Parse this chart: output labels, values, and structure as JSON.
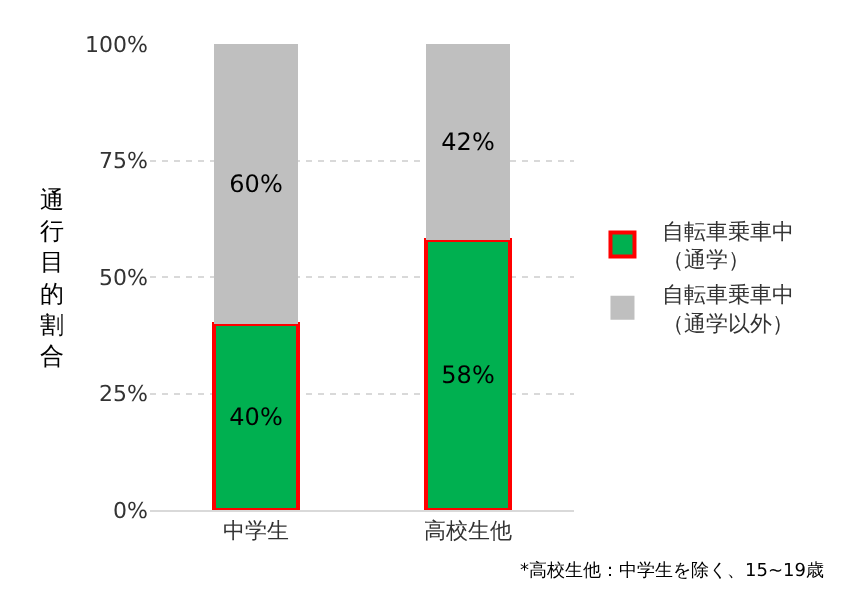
{
  "chart_data": {
    "type": "bar",
    "stacked": true,
    "ylabel": "通行目的割合",
    "categories": [
      "中学生",
      "高校生他"
    ],
    "series": [
      {
        "name": "自転車乗車中（通学）",
        "color": "#00b050",
        "values": [
          40,
          58
        ],
        "value_labels": [
          "40%",
          "58%"
        ]
      },
      {
        "name": "自転車乗車中（通学以外）",
        "color": "#bfbfbf",
        "values": [
          60,
          42
        ],
        "value_labels": [
          "60%",
          "42%"
        ]
      }
    ],
    "ylim": [
      0,
      100
    ],
    "yticks": [
      {
        "value": 0,
        "label": "0%"
      },
      {
        "value": 25,
        "label": "25%"
      },
      {
        "value": 50,
        "label": "50%"
      },
      {
        "value": 75,
        "label": "75%"
      },
      {
        "value": 100,
        "label": "100%"
      }
    ],
    "grid": "y",
    "legend": "right",
    "annotations": [
      "*高校生他：中学生を除く、15~19歳"
    ]
  }
}
